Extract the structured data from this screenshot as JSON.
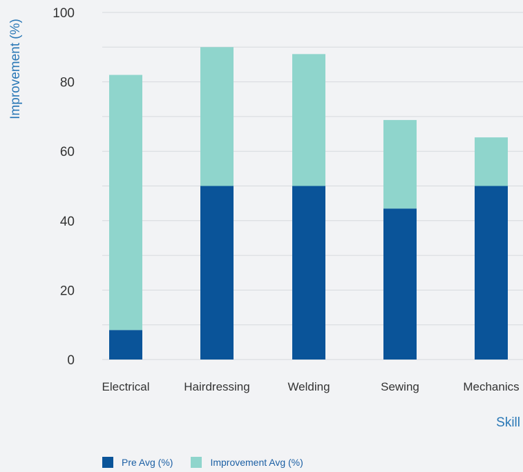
{
  "colors": {
    "pre": "#0a5499",
    "improvement": "#8fd5cc",
    "axis_title": "#2a78b6",
    "grid": "#d6d9dd",
    "tick_text": "#333333",
    "background": "#f2f3f5"
  },
  "chart_data": {
    "type": "bar",
    "stacked": true,
    "title": "",
    "xlabel": "Skill",
    "ylabel": "Improvement (%)",
    "ylim": [
      0,
      100
    ],
    "yticks": [
      0,
      20,
      40,
      60,
      80,
      100
    ],
    "grid": true,
    "legend_position": "bottom-left",
    "categories": [
      "Electrical",
      "Hairdressing",
      "Welding",
      "Sewing",
      "Mechanics"
    ],
    "series": [
      {
        "name": "Pre Avg (%)",
        "values": [
          8.5,
          50,
          50,
          43.5,
          50
        ]
      },
      {
        "name": "Improvement Avg (%)",
        "values": [
          73.5,
          40,
          38,
          25.5,
          14
        ]
      }
    ]
  }
}
